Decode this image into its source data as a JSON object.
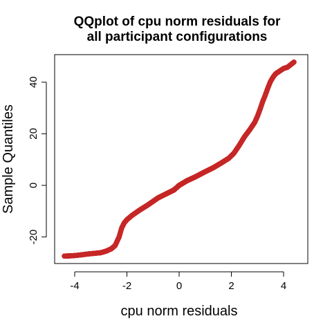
{
  "chart_data": {
    "type": "scatter",
    "title_lines": [
      "QQplot of cpu norm residuals for",
      "all participant configurations"
    ],
    "xlabel": "cpu norm residuals",
    "ylabel": "Sample Quantiles",
    "xlim": [
      -4.5,
      4.5
    ],
    "ylim": [
      -30,
      50
    ],
    "xticks": [
      -4,
      -2,
      0,
      2,
      4
    ],
    "yticks": [
      -20,
      0,
      20,
      40
    ],
    "xtick_labels": [
      "-4",
      "-2",
      "0",
      "2",
      "4"
    ],
    "ytick_labels": [
      "-20",
      "0",
      "20",
      "40"
    ],
    "grid": false,
    "point_color": "#c62828",
    "curve": [
      [
        -4.4,
        -27.4
      ],
      [
        -4.1,
        -27.3
      ],
      [
        -3.8,
        -27.0
      ],
      [
        -3.5,
        -26.6
      ],
      [
        -3.2,
        -26.3
      ],
      [
        -3.0,
        -26.1
      ],
      [
        -2.8,
        -25.5
      ],
      [
        -2.6,
        -24.6
      ],
      [
        -2.45,
        -23.3
      ],
      [
        -2.3,
        -20.0
      ],
      [
        -2.2,
        -16.5
      ],
      [
        -2.1,
        -14.5
      ],
      [
        -2.0,
        -13.3
      ],
      [
        -1.8,
        -11.6
      ],
      [
        -1.5,
        -9.5
      ],
      [
        -1.2,
        -7.6
      ],
      [
        -1.0,
        -6.2
      ],
      [
        -0.8,
        -4.8
      ],
      [
        -0.5,
        -3.3
      ],
      [
        -0.2,
        -1.8
      ],
      [
        0.0,
        0.0
      ],
      [
        0.3,
        1.8
      ],
      [
        0.6,
        3.2
      ],
      [
        1.0,
        5.3
      ],
      [
        1.3,
        6.8
      ],
      [
        1.6,
        8.6
      ],
      [
        1.9,
        10.5
      ],
      [
        2.1,
        12.5
      ],
      [
        2.3,
        15.5
      ],
      [
        2.5,
        18.8
      ],
      [
        2.7,
        21.5
      ],
      [
        2.9,
        24.5
      ],
      [
        3.0,
        26.8
      ],
      [
        3.1,
        29.5
      ],
      [
        3.2,
        32.5
      ],
      [
        3.3,
        35.0
      ],
      [
        3.4,
        37.8
      ],
      [
        3.5,
        40.3
      ],
      [
        3.6,
        42.0
      ],
      [
        3.7,
        43.3
      ],
      [
        3.85,
        44.3
      ],
      [
        4.0,
        45.3
      ],
      [
        4.15,
        45.8
      ],
      [
        4.4,
        47.8
      ]
    ],
    "points_per_unit": 160
  }
}
